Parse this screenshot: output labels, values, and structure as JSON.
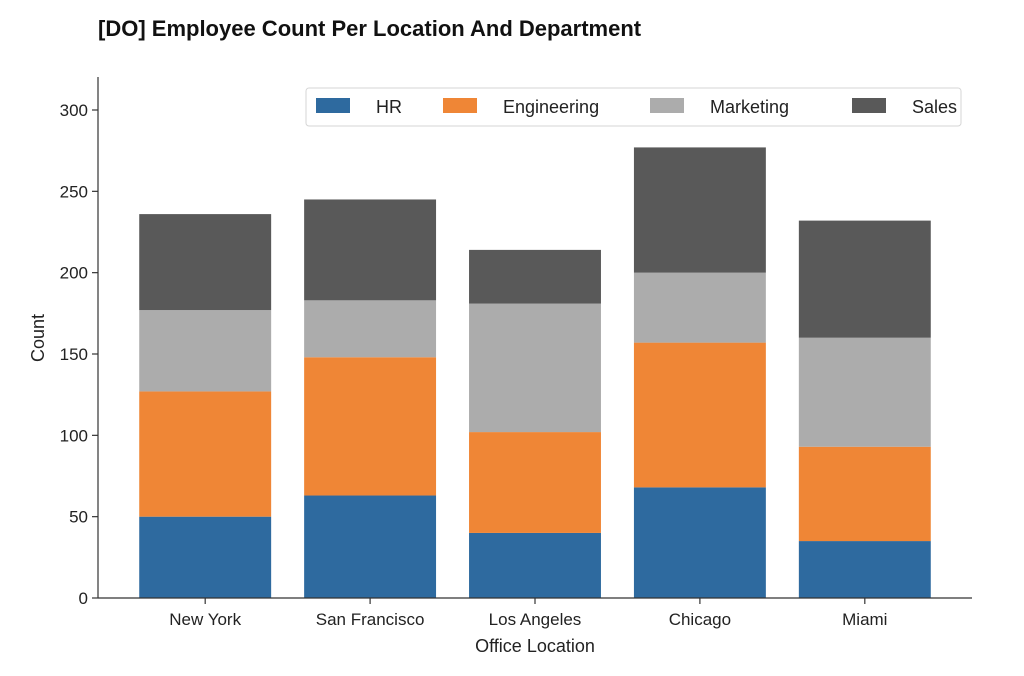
{
  "chart_data": {
    "type": "bar",
    "stacked": true,
    "title": "[DO] Employee Count Per Location And Department",
    "xlabel": "Office Location",
    "ylabel": "Count",
    "categories": [
      "New York",
      "San Francisco",
      "Los Angeles",
      "Chicago",
      "Miami"
    ],
    "series": [
      {
        "name": "HR",
        "color": "#2e6a9f",
        "values": [
          50,
          63,
          40,
          68,
          35
        ]
      },
      {
        "name": "Engineering",
        "color": "#ef8636",
        "values": [
          77,
          85,
          62,
          89,
          58
        ]
      },
      {
        "name": "Marketing",
        "color": "#acacac",
        "values": [
          50,
          35,
          79,
          43,
          67
        ]
      },
      {
        "name": "Sales",
        "color": "#595959",
        "values": [
          59,
          62,
          33,
          77,
          72
        ]
      }
    ],
    "ylim": [
      0,
      320
    ],
    "yticks": [
      0,
      50,
      100,
      150,
      200,
      250,
      300
    ],
    "grid": false,
    "legend": {
      "placement": "top-right",
      "columns": 4
    }
  }
}
